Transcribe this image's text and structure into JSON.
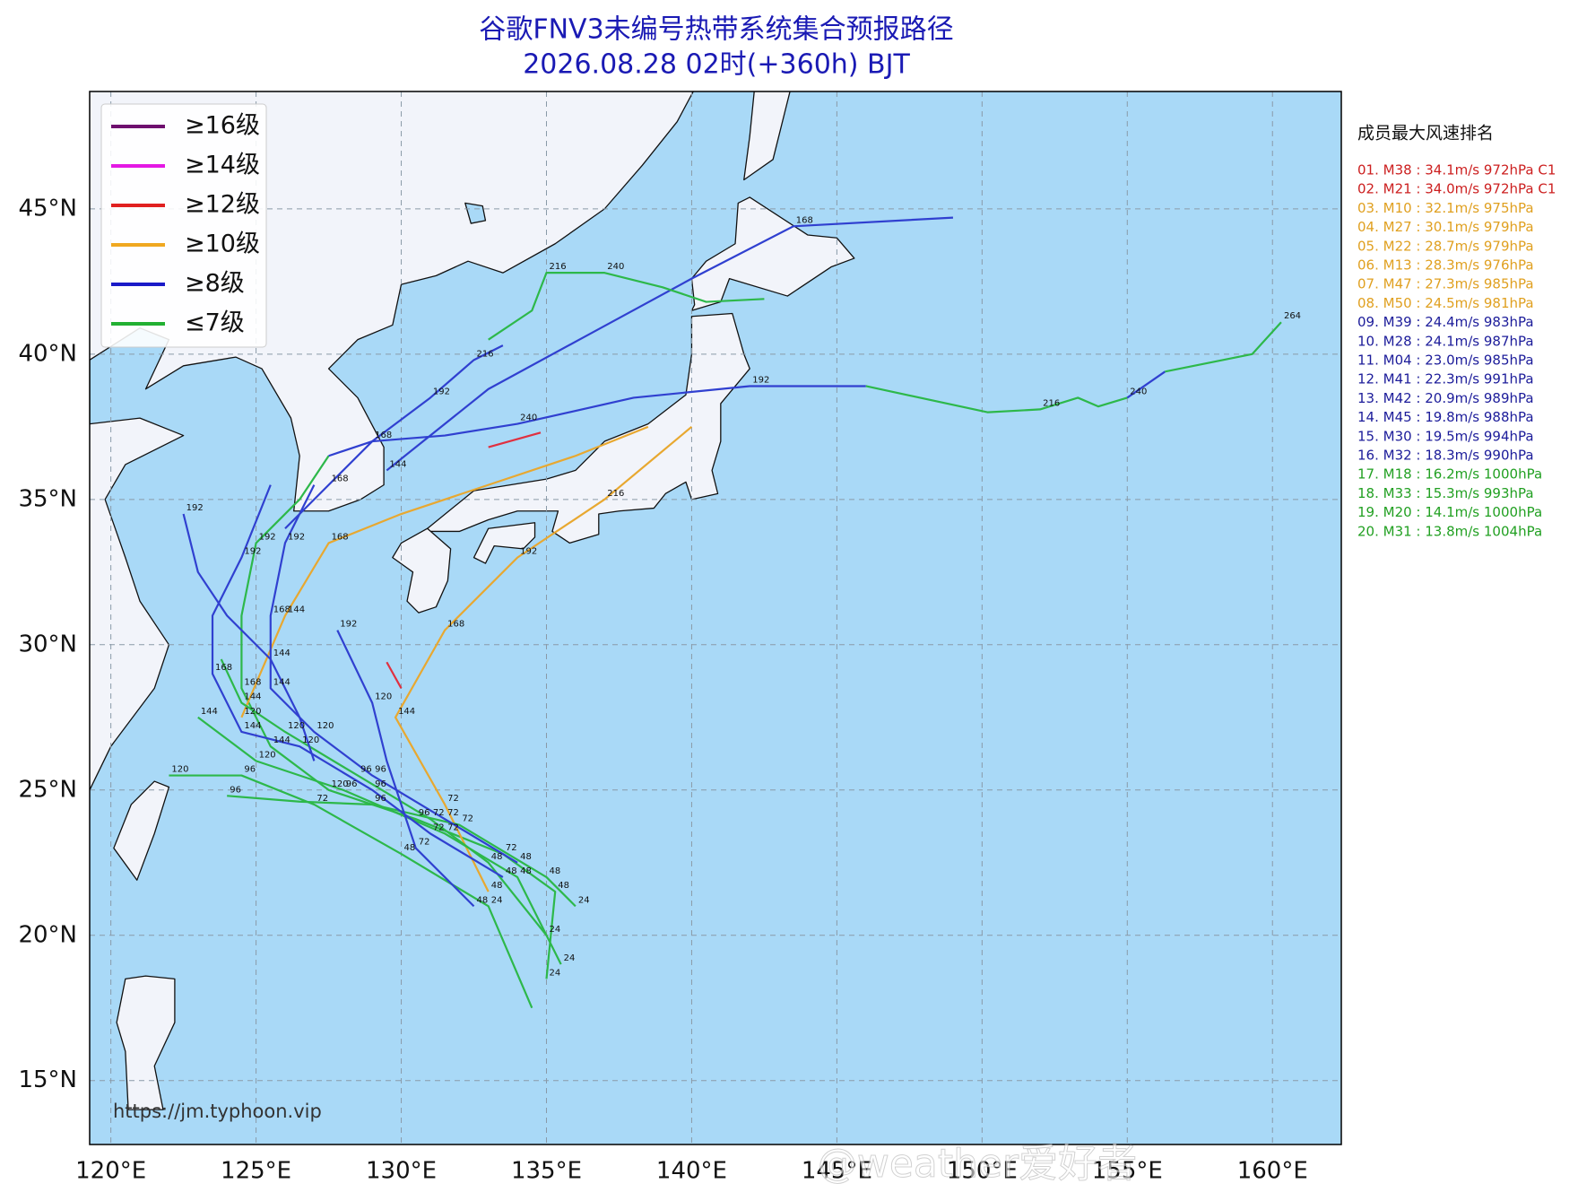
{
  "chart_data": {
    "type": "track-map",
    "title": "谷歌FNV3未编号热带系统集合预报路径",
    "subtitle": "2026.08.28 02时(+360h) BJT",
    "xlim": [
      119.27,
      162.37
    ],
    "ylim": [
      12.8,
      49.04
    ],
    "xticks": [
      {
        "value": 120,
        "label": "120°E"
      },
      {
        "value": 125,
        "label": "125°E"
      },
      {
        "value": 130,
        "label": "130°E"
      },
      {
        "value": 135,
        "label": "135°E"
      },
      {
        "value": 140,
        "label": "140°E"
      },
      {
        "value": 145,
        "label": "145°E"
      },
      {
        "value": 150,
        "label": "150°E"
      },
      {
        "value": 155,
        "label": "155°E"
      },
      {
        "value": 160,
        "label": "160°E"
      }
    ],
    "yticks": [
      {
        "value": 15,
        "label": "15°N"
      },
      {
        "value": 20,
        "label": "20°N"
      },
      {
        "value": 25,
        "label": "25°N"
      },
      {
        "value": 30,
        "label": "30°N"
      },
      {
        "value": 35,
        "label": "35°N"
      },
      {
        "value": 40,
        "label": "40°N"
      },
      {
        "value": 45,
        "label": "45°N"
      }
    ],
    "grid": true,
    "legend": [
      {
        "label": "≥16级",
        "color": "#6e0f6e"
      },
      {
        "label": "≥14级",
        "color": "#e418e4"
      },
      {
        "label": "≥12级",
        "color": "#e02020"
      },
      {
        "label": "≥10级",
        "color": "#f0a820"
      },
      {
        "label": "≥8级",
        "color": "#1a1ac8"
      },
      {
        "label": "≤7级",
        "color": "#22b032"
      }
    ],
    "ranking": {
      "title": "成员最大风速排名",
      "entries": [
        {
          "text": "01. M38 : 34.1m/s 972hPa C1",
          "color": "#cc1f1f"
        },
        {
          "text": "02. M21 : 34.0m/s 972hPa C1",
          "color": "#cc1f1f"
        },
        {
          "text": "03. M10 : 32.1m/s 975hPa",
          "color": "#e0a020"
        },
        {
          "text": "04. M27 : 30.1m/s 979hPa",
          "color": "#e0a020"
        },
        {
          "text": "05. M22 : 28.7m/s 979hPa",
          "color": "#e0a020"
        },
        {
          "text": "06. M13 : 28.3m/s 976hPa",
          "color": "#e0a020"
        },
        {
          "text": "07. M47 : 27.3m/s 985hPa",
          "color": "#e0a020"
        },
        {
          "text": "08. M50 : 24.5m/s 981hPa",
          "color": "#e0a020"
        },
        {
          "text": "09. M39 : 24.4m/s 983hPa",
          "color": "#1c1c9a"
        },
        {
          "text": "10. M28 : 24.1m/s 987hPa",
          "color": "#1c1c9a"
        },
        {
          "text": "11. M04 : 23.0m/s 985hPa",
          "color": "#1c1c9a"
        },
        {
          "text": "12. M41 : 22.3m/s 991hPa",
          "color": "#1c1c9a"
        },
        {
          "text": "13. M42 : 20.9m/s 989hPa",
          "color": "#1c1c9a"
        },
        {
          "text": "14. M45 : 19.8m/s 988hPa",
          "color": "#1c1c9a"
        },
        {
          "text": "15. M30 : 19.5m/s 994hPa",
          "color": "#1c1c9a"
        },
        {
          "text": "16. M32 : 18.3m/s 990hPa",
          "color": "#1c1c9a"
        },
        {
          "text": "17. M18 : 16.2m/s 1000hPa",
          "color": "#22a022"
        },
        {
          "text": "18. M33 : 15.3m/s 993hPa",
          "color": "#22a022"
        },
        {
          "text": "19. M20 : 14.1m/s 1000hPa",
          "color": "#22a022"
        },
        {
          "text": "20. M31 : 13.8m/s 1004hPa",
          "color": "#22a022"
        }
      ]
    },
    "source": "https://jm.typhoon.vip",
    "watermark": "@weather爱好者",
    "tracks": [
      {
        "color": "#2db84a",
        "lon": [
          135,
          135.3,
          133.5,
          130.5,
          127.5,
          125.5,
          124.5,
          124.5,
          125,
          126.5,
          127.5
        ],
        "lat": [
          18.5,
          21.5,
          22.8,
          24,
          25,
          26.5,
          28.5,
          31,
          33.5,
          35,
          36.5
        ],
        "hours": [
          24,
          48,
          72,
          96,
          120,
          144,
          168,
          null,
          192,
          null,
          null
        ]
      },
      {
        "color": "#3040d0",
        "lon": [
          127.5,
          129,
          131.5,
          134,
          138,
          142,
          146
        ],
        "lat": [
          36.5,
          37,
          37.2,
          37.6,
          38.5,
          38.9,
          38.9
        ],
        "hours": [
          null,
          168,
          null,
          240,
          null,
          192,
          null
        ]
      },
      {
        "color": "#2db84a",
        "lon": [
          146,
          150.2,
          152,
          153.3,
          154,
          155
        ],
        "lat": [
          38.9,
          38,
          38.1,
          38.5,
          38.2,
          38.5
        ],
        "hours": [
          null,
          null,
          216,
          null,
          null,
          240
        ]
      },
      {
        "color": "#3040d0",
        "lon": [
          155,
          156.3
        ],
        "lat": [
          38.5,
          39.4
        ],
        "hours": [
          null,
          null
        ]
      },
      {
        "color": "#2db84a",
        "lon": [
          156.3,
          159.3,
          160.3
        ],
        "lat": [
          39.4,
          40,
          41.1
        ],
        "hours": [
          null,
          null,
          264
        ]
      },
      {
        "color": "#3040d0",
        "lon": [
          129.5,
          133,
          136.5,
          140,
          143.5,
          149
        ],
        "lat": [
          36,
          38.8,
          40.7,
          42.6,
          44.4,
          44.7
        ],
        "hours": [
          144,
          null,
          null,
          null,
          168,
          null
        ]
      },
      {
        "color": "#2db84a",
        "lon": [
          133,
          134.5,
          135,
          137,
          139,
          140.5,
          142.5
        ],
        "lat": [
          40.5,
          41.5,
          42.8,
          42.8,
          42.3,
          41.8,
          41.9
        ],
        "hours": [
          null,
          null,
          216,
          240,
          null,
          null,
          null
        ]
      },
      {
        "color": "#3040d0",
        "lon": [
          126,
          127.5,
          129,
          131,
          132.5,
          133.5
        ],
        "lat": [
          34,
          35.5,
          37,
          38.5,
          39.8,
          40.3
        ],
        "hours": [
          null,
          168,
          null,
          192,
          216,
          null
        ]
      },
      {
        "color": "#e8a830",
        "lon": [
          124.5,
          126,
          127.5,
          130,
          133,
          136,
          138.5
        ],
        "lat": [
          27.5,
          31,
          33.5,
          34.5,
          35.5,
          36.5,
          37.5
        ],
        "hours": [
          120,
          144,
          168,
          null,
          null,
          null,
          null
        ]
      },
      {
        "color": "#e8a830",
        "lon": [
          133,
          131.5,
          129.8,
          131.5,
          134,
          137,
          140
        ],
        "lat": [
          21.5,
          24.5,
          27.5,
          30.5,
          33,
          35,
          37.5
        ],
        "hours": [
          48,
          72,
          144,
          168,
          192,
          216,
          null
        ]
      },
      {
        "color": "#e03040",
        "lon": [
          133,
          134.8
        ],
        "lat": [
          36.8,
          37.3
        ],
        "hours": [
          null,
          null
        ]
      },
      {
        "color": "#e03040",
        "lon": [
          129.5,
          130
        ],
        "lat": [
          29.4,
          28.5
        ],
        "hours": [
          null,
          null
        ]
      },
      {
        "color": "#2db84a",
        "lon": [
          134.5,
          133,
          130,
          127,
          124.5,
          122
        ],
        "lat": [
          17.5,
          21,
          22.8,
          24.5,
          25.5,
          25.5
        ],
        "hours": [
          null,
          24,
          48,
          72,
          96,
          120
        ]
      },
      {
        "color": "#2db84a",
        "lon": [
          135.5,
          134,
          131.5,
          128,
          125,
          123
        ],
        "lat": [
          19,
          22,
          23.5,
          25,
          26,
          27.5
        ],
        "hours": [
          24,
          48,
          72,
          96,
          120,
          144
        ]
      },
      {
        "color": "#2db84a",
        "lon": [
          136,
          135,
          132,
          129,
          126.5,
          124
        ],
        "lat": [
          21,
          22,
          23.8,
          24.5,
          24.6,
          24.8
        ],
        "hours": [
          24,
          48,
          72,
          96,
          null,
          96
        ]
      },
      {
        "color": "#2db84a",
        "lon": [
          135,
          133,
          131,
          128.5,
          126,
          124.5,
          123.8
        ],
        "lat": [
          20,
          22.5,
          24,
          25.5,
          27,
          28,
          29.5
        ],
        "hours": [
          24,
          48,
          72,
          96,
          120,
          144,
          null
        ]
      },
      {
        "color": "#3040d0",
        "lon": [
          133.5,
          131,
          129,
          126.5,
          124.5,
          123.5,
          123.5,
          124.5,
          125.5
        ],
        "lat": [
          22,
          23.5,
          25,
          26.5,
          27,
          29,
          31,
          33,
          35.5
        ],
        "hours": [
          48,
          72,
          96,
          120,
          144,
          168,
          null,
          192,
          null
        ]
      },
      {
        "color": "#3040d0",
        "lon": [
          134,
          131.5,
          129,
          127,
          125.5,
          125.5,
          126,
          127
        ],
        "lat": [
          22.5,
          24,
          25.5,
          27,
          28.5,
          31,
          33.5,
          35.5
        ],
        "hours": [
          48,
          72,
          96,
          120,
          144,
          168,
          192,
          null
        ]
      },
      {
        "color": "#3040d0",
        "lon": [
          132.5,
          130.5,
          129.5,
          129,
          127.8
        ],
        "lat": [
          21,
          23,
          26,
          28,
          30.5
        ],
        "hours": [
          48,
          72,
          null,
          120,
          192
        ]
      },
      {
        "color": "#3040d0",
        "lon": [
          127,
          126.5,
          125.5,
          124,
          123,
          122.5
        ],
        "lat": [
          26,
          27.5,
          29.5,
          31,
          32.5,
          34.5
        ],
        "hours": [
          null,
          null,
          144,
          null,
          null,
          192
        ]
      }
    ]
  }
}
